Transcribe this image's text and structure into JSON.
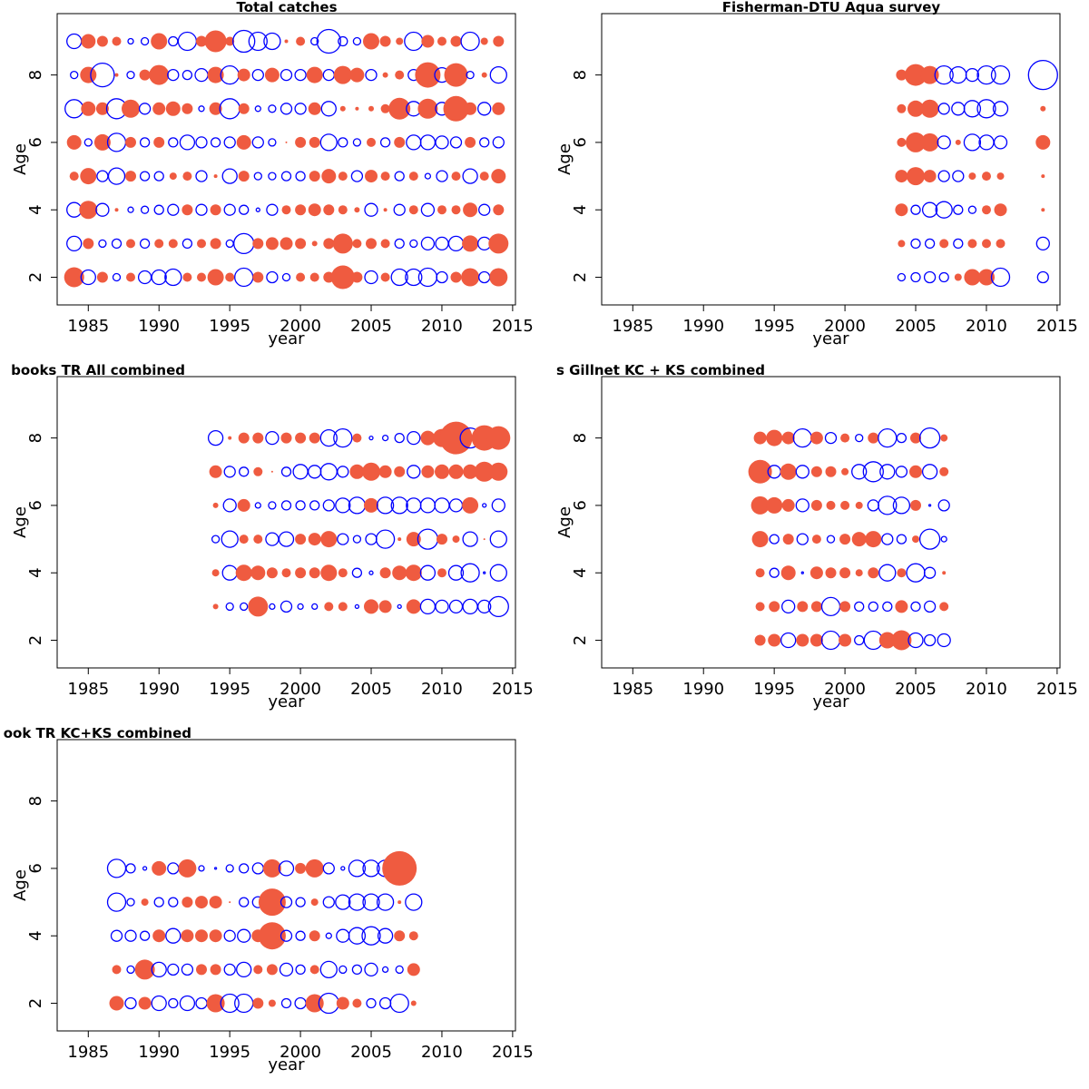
{
  "colors": {
    "positive": "#EF5B40",
    "negative": "#0000FF"
  },
  "chart_data": [
    {
      "type": "scatter",
      "title": "Total catches",
      "xlabel": "year",
      "ylabel": "Age",
      "xlim": [
        1982.8,
        2015.2
      ],
      "ylim": [
        1.18,
        9.82
      ],
      "xticks": [
        1985,
        1990,
        1995,
        2000,
        2005,
        2010,
        2015
      ],
      "yticks": [
        2,
        4,
        6,
        8
      ],
      "years": [
        1984,
        1985,
        1986,
        1987,
        1988,
        1989,
        1990,
        1991,
        1992,
        1993,
        1994,
        1995,
        1996,
        1997,
        1998,
        1999,
        2000,
        2001,
        2002,
        2003,
        2004,
        2005,
        2006,
        2007,
        2008,
        2009,
        2010,
        2011,
        2012,
        2013,
        2014
      ],
      "rows": [
        {
          "age": 9,
          "residuals": [
            -0.8,
            0.8,
            0.6,
            0.5,
            -0.3,
            -0.4,
            0.9,
            -0.5,
            -1.0,
            0.6,
            1.2,
            0.5,
            -1.2,
            -1.0,
            -0.9,
            0.2,
            0.5,
            -0.4,
            -1.3,
            -0.5,
            -0.4,
            0.9,
            0.6,
            0.4,
            -1.0,
            0.7,
            0.5,
            0.6,
            -1.0,
            0.4,
            0.6
          ]
        },
        {
          "age": 8,
          "residuals": [
            -0.4,
            0.9,
            -1.3,
            0.2,
            -0.4,
            0.6,
            1.1,
            -0.6,
            -0.5,
            -0.7,
            0.9,
            -1.0,
            0.7,
            -0.6,
            0.8,
            -0.6,
            -0.6,
            0.9,
            -0.6,
            1.0,
            0.8,
            -0.6,
            0.3,
            0.5,
            -0.6,
            1.4,
            -0.8,
            1.3,
            -0.4,
            0.3,
            -0.9
          ]
        },
        {
          "age": 7,
          "residuals": [
            -1.0,
            0.8,
            0.7,
            -1.1,
            1.0,
            -0.6,
            0.7,
            0.8,
            0.6,
            -0.3,
            0.7,
            -1.1,
            0.6,
            -0.3,
            -0.4,
            -0.6,
            -0.6,
            0.7,
            -0.8,
            0.3,
            0.2,
            0.3,
            0.5,
            1.2,
            -0.8,
            1.1,
            -0.7,
            1.4,
            0.7,
            -0.7,
            0.7
          ]
        },
        {
          "age": 6,
          "residuals": [
            0.8,
            -0.4,
            0.9,
            -1.0,
            0.6,
            -0.5,
            0.6,
            -0.5,
            -0.8,
            -0.6,
            -0.5,
            -0.6,
            0.8,
            -0.6,
            -0.4,
            0.1,
            0.6,
            0.6,
            -0.9,
            -0.5,
            -0.4,
            0.5,
            -0.5,
            0.6,
            -0.8,
            -0.8,
            -0.7,
            -0.6,
            0.6,
            -0.5,
            -0.6
          ]
        },
        {
          "age": 5,
          "residuals": [
            0.5,
            0.9,
            -0.6,
            -0.9,
            0.6,
            -0.5,
            -0.5,
            0.4,
            0.5,
            -0.6,
            0.2,
            -0.8,
            0.6,
            -0.4,
            -0.4,
            -0.5,
            -0.5,
            0.6,
            0.8,
            0.5,
            -0.6,
            0.7,
            0.5,
            -0.5,
            0.5,
            -0.3,
            -0.6,
            0.5,
            -0.8,
            0.5,
            0.8
          ]
        },
        {
          "age": 4,
          "residuals": [
            -0.8,
            1.0,
            -0.7,
            0.2,
            -0.3,
            -0.4,
            -0.5,
            -0.6,
            0.6,
            -0.6,
            0.6,
            -0.6,
            -0.5,
            -0.2,
            -0.6,
            0.5,
            0.6,
            0.7,
            0.6,
            0.5,
            0.3,
            -0.7,
            0.2,
            -0.6,
            0.5,
            -0.7,
            0.5,
            0.5,
            0.8,
            -0.6,
            0.6
          ]
        },
        {
          "age": 3,
          "residuals": [
            -0.8,
            0.6,
            -0.4,
            -0.5,
            0.5,
            -0.5,
            0.5,
            0.5,
            -0.5,
            0.5,
            0.6,
            -0.4,
            -1.1,
            0.6,
            0.7,
            0.7,
            0.6,
            0.3,
            0.6,
            1.1,
            0.5,
            0.6,
            0.5,
            -0.5,
            -0.4,
            -0.7,
            -0.7,
            -0.8,
            0.9,
            -0.7,
            1.1
          ]
        },
        {
          "age": 2,
          "residuals": [
            1.1,
            -0.8,
            0.6,
            -0.4,
            0.5,
            -0.7,
            -0.8,
            -0.9,
            0.5,
            0.5,
            0.9,
            0.5,
            -1.0,
            0.6,
            -0.6,
            -0.4,
            0.5,
            0.5,
            0.6,
            1.3,
            0.6,
            -0.7,
            0.5,
            -0.9,
            -0.9,
            -1.0,
            -0.6,
            0.6,
            1.0,
            -0.6,
            1.0
          ]
        }
      ]
    },
    {
      "type": "scatter",
      "title": "Fisherman-DTU Aqua survey",
      "xlabel": "year",
      "ylabel": "Age",
      "xlim": [
        1982.8,
        2015.2
      ],
      "ylim": [
        1.18,
        9.82
      ],
      "xticks": [
        1985,
        1990,
        1995,
        2000,
        2005,
        2010,
        2015
      ],
      "yticks": [
        2,
        4,
        6,
        8
      ],
      "years": [
        2004,
        2005,
        2006,
        2007,
        2008,
        2009,
        2010,
        2011,
        2014
      ],
      "rows": [
        {
          "age": 8,
          "residuals": [
            0.6,
            1.2,
            1.0,
            -1.0,
            -0.9,
            -0.7,
            -1.0,
            -1.0,
            -1.6
          ]
        },
        {
          "age": 7,
          "residuals": [
            0.5,
            0.9,
            1.0,
            -0.6,
            -0.7,
            -0.9,
            -1.0,
            -0.8,
            0.3
          ]
        },
        {
          "age": 6,
          "residuals": [
            0.5,
            1.1,
            1.0,
            -0.7,
            0.3,
            -0.9,
            -0.8,
            -0.7,
            0.8
          ]
        },
        {
          "age": 5,
          "residuals": [
            0.7,
            1.0,
            0.7,
            -0.6,
            -0.6,
            0.4,
            0.5,
            0.4,
            0.2
          ]
        },
        {
          "age": 4,
          "residuals": [
            0.7,
            -0.5,
            -0.8,
            -0.9,
            -0.5,
            -0.4,
            0.5,
            0.7,
            0.2
          ]
        },
        {
          "age": 3,
          "residuals": [
            0.4,
            -0.5,
            -0.5,
            0.5,
            -0.5,
            0.5,
            0.5,
            0.5,
            -0.7
          ]
        },
        {
          "age": 2,
          "residuals": [
            -0.4,
            -0.5,
            -0.6,
            -0.5,
            0.4,
            0.9,
            0.9,
            -1.0,
            -0.6
          ]
        }
      ]
    },
    {
      "type": "scatter",
      "title": "books TR All combined",
      "xlabel": "year",
      "ylabel": "Age",
      "xlim": [
        1982.8,
        2015.2
      ],
      "ylim": [
        1.18,
        9.82
      ],
      "xticks": [
        1985,
        1990,
        1995,
        2000,
        2005,
        2010,
        2015
      ],
      "yticks": [
        2,
        4,
        6,
        8
      ],
      "years": [
        1994,
        1995,
        1996,
        1997,
        1998,
        1999,
        2000,
        2001,
        2002,
        2003,
        2004,
        2005,
        2006,
        2007,
        2008,
        2009,
        2010,
        2011,
        2012,
        2013,
        2014
      ],
      "rows": [
        {
          "age": 8,
          "residuals": [
            -0.8,
            0.2,
            0.6,
            0.6,
            -0.7,
            0.6,
            0.6,
            0.6,
            -0.9,
            -1.0,
            0.5,
            -0.2,
            -0.3,
            -0.5,
            -0.7,
            0.8,
            1.0,
            1.8,
            -1.1,
            1.4,
            1.3
          ]
        },
        {
          "age": 7,
          "residuals": [
            0.7,
            -0.6,
            -0.5,
            0.5,
            0.1,
            -0.5,
            -0.8,
            -0.7,
            -0.9,
            -0.6,
            0.8,
            1.0,
            0.7,
            0.6,
            -0.7,
            0.7,
            0.8,
            0.8,
            0.8,
            1.1,
            1.0
          ]
        },
        {
          "age": 6,
          "residuals": [
            0.3,
            -0.7,
            0.7,
            -0.3,
            -0.4,
            -0.5,
            -0.5,
            -0.5,
            -0.6,
            -0.8,
            -0.9,
            0.8,
            -0.9,
            -0.9,
            -0.8,
            -0.8,
            -0.8,
            -0.7,
            0.9,
            -0.2,
            -0.7
          ]
        },
        {
          "age": 5,
          "residuals": [
            -0.4,
            -0.9,
            0.5,
            0.5,
            -0.7,
            -0.8,
            0.6,
            0.7,
            0.9,
            -0.6,
            -0.4,
            -0.6,
            -1.0,
            0.2,
            0.8,
            -1.1,
            0.6,
            0.4,
            -0.8,
            0.1,
            -0.9
          ]
        },
        {
          "age": 4,
          "residuals": [
            0.4,
            -0.8,
            0.9,
            0.8,
            0.6,
            0.5,
            0.6,
            0.6,
            0.9,
            0.5,
            -0.5,
            -0.2,
            0.6,
            0.8,
            0.9,
            -0.8,
            0.5,
            -0.8,
            -1.0,
            -0.1,
            -0.9
          ]
        },
        {
          "age": 3,
          "residuals": [
            0.3,
            -0.4,
            -0.4,
            1.1,
            -0.3,
            -0.6,
            -0.3,
            -0.3,
            0.5,
            0.5,
            -0.2,
            0.8,
            0.7,
            -0.2,
            0.8,
            -0.8,
            -0.7,
            -0.7,
            -0.8,
            -0.7,
            -1.1
          ]
        }
      ]
    },
    {
      "type": "scatter",
      "title": "s Gillnet KC + KS combined",
      "xlabel": "year",
      "ylabel": "Age",
      "xlim": [
        1982.8,
        2015.2
      ],
      "ylim": [
        1.18,
        9.82
      ],
      "xticks": [
        1985,
        1990,
        1995,
        2000,
        2005,
        2010,
        2015
      ],
      "yticks": [
        2,
        4,
        6,
        8
      ],
      "years": [
        1994,
        1995,
        1996,
        1997,
        1998,
        1999,
        2000,
        2001,
        2002,
        2003,
        2004,
        2005,
        2006,
        2007
      ],
      "rows": [
        {
          "age": 8,
          "residuals": [
            0.7,
            0.9,
            0.7,
            -1.0,
            0.7,
            -0.6,
            0.5,
            -0.4,
            0.6,
            -1.0,
            -0.5,
            0.6,
            -1.1,
            0.4
          ]
        },
        {
          "age": 7,
          "residuals": [
            1.3,
            -0.7,
            0.9,
            -0.7,
            0.6,
            0.6,
            0.4,
            -0.8,
            -1.1,
            -0.8,
            -0.6,
            0.7,
            -0.8,
            0.5
          ]
        },
        {
          "age": 6,
          "residuals": [
            1.0,
            0.9,
            0.7,
            -0.7,
            0.6,
            0.5,
            0.5,
            0.4,
            -0.6,
            -1.0,
            -0.9,
            0.6,
            -0.1,
            -0.6
          ]
        },
        {
          "age": 5,
          "residuals": [
            0.9,
            -0.5,
            0.6,
            -0.6,
            0.5,
            -0.4,
            0.6,
            0.8,
            0.9,
            -0.6,
            -0.5,
            0.4,
            -1.1,
            -0.3
          ]
        },
        {
          "age": 4,
          "residuals": [
            0.5,
            -0.5,
            0.8,
            -0.1,
            0.7,
            0.6,
            0.6,
            0.4,
            0.6,
            -0.9,
            0.5,
            -1.0,
            -0.6,
            0.2
          ]
        },
        {
          "age": 3,
          "residuals": [
            0.5,
            0.6,
            -0.7,
            0.6,
            0.6,
            -1.0,
            0.6,
            -0.5,
            -0.5,
            -0.5,
            0.7,
            -0.5,
            -0.6,
            0.5
          ]
        },
        {
          "age": 2,
          "residuals": [
            0.6,
            0.7,
            -0.8,
            0.7,
            0.7,
            -1.0,
            0.7,
            -0.5,
            -1.0,
            0.9,
            1.1,
            -0.8,
            -0.6,
            -0.7
          ]
        }
      ]
    },
    {
      "type": "scatter",
      "title": "ook TR KC+KS combined",
      "xlabel": "year",
      "ylabel": "Age",
      "xlim": [
        1982.8,
        2015.2
      ],
      "ylim": [
        1.18,
        9.82
      ],
      "xticks": [
        1985,
        1990,
        1995,
        2000,
        2005,
        2010,
        2015
      ],
      "yticks": [
        2,
        4,
        6,
        8
      ],
      "years": [
        1987,
        1988,
        1989,
        1990,
        1991,
        1992,
        1993,
        1994,
        1995,
        1996,
        1997,
        1998,
        1999,
        2000,
        2001,
        2002,
        2003,
        2004,
        2005,
        2006,
        2007,
        2008
      ],
      "rows": [
        {
          "age": 6,
          "residuals": [
            -1.0,
            -0.5,
            -0.2,
            0.8,
            -0.6,
            1.0,
            -0.3,
            -0.1,
            -0.4,
            -0.5,
            -0.6,
            1.0,
            -0.8,
            0.6,
            1.0,
            -0.6,
            -0.2,
            -0.9,
            -0.9,
            -0.9,
            1.9,
            null
          ]
        },
        {
          "age": 5,
          "residuals": [
            -1.0,
            -0.4,
            0.4,
            -0.5,
            -0.5,
            0.6,
            0.7,
            0.7,
            0.1,
            -0.5,
            -0.6,
            1.5,
            -0.6,
            -0.5,
            0.4,
            -0.6,
            -0.8,
            -0.9,
            -0.9,
            -0.9,
            0.2,
            -0.9
          ]
        },
        {
          "age": 4,
          "residuals": [
            -0.6,
            -0.6,
            -0.5,
            0.7,
            -0.8,
            0.7,
            0.7,
            0.7,
            -0.6,
            -0.7,
            0.7,
            1.5,
            -0.6,
            -0.5,
            0.6,
            -0.3,
            -0.7,
            -0.9,
            -1.0,
            -0.8,
            0.6,
            0.5
          ]
        },
        {
          "age": 3,
          "residuals": [
            0.5,
            -0.4,
            1.1,
            -0.8,
            -0.6,
            -0.6,
            0.6,
            0.6,
            -0.6,
            -0.8,
            0.5,
            0.6,
            -0.7,
            -0.5,
            0.5,
            -0.9,
            -0.4,
            -0.5,
            -0.7,
            -0.3,
            -0.4,
            0.7
          ]
        },
        {
          "age": 2,
          "residuals": [
            0.8,
            -0.6,
            0.7,
            -0.8,
            -0.5,
            -0.8,
            -0.6,
            1.0,
            -1.0,
            -1.0,
            0.6,
            0.4,
            -0.5,
            -0.6,
            1.0,
            -1.1,
            0.7,
            0.5,
            -0.5,
            -0.6,
            -1.0,
            0.3
          ]
        }
      ]
    }
  ]
}
